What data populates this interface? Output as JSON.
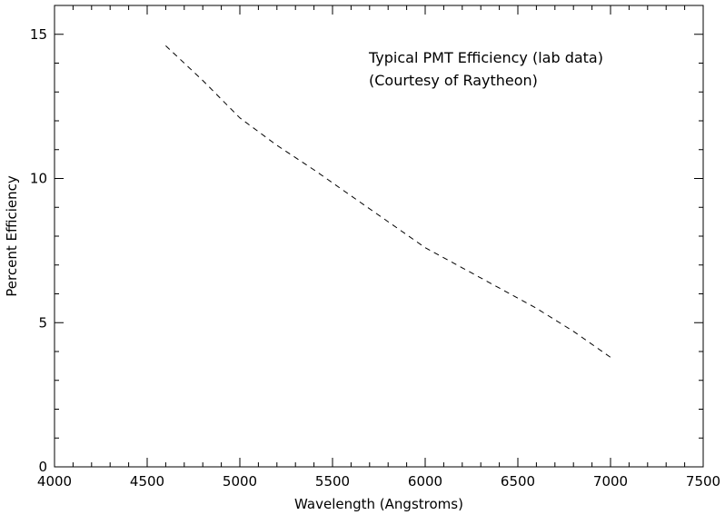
{
  "chart_data": {
    "type": "line",
    "title": "",
    "xlabel": "Wavelength (Angstroms)",
    "ylabel": "Percent Efficiency",
    "xlim": [
      4000,
      7500
    ],
    "ylim": [
      0,
      16
    ],
    "x_ticks": [
      4000,
      4500,
      5000,
      5500,
      6000,
      6500,
      7000,
      7500
    ],
    "x_tick_labels": [
      "4000",
      "4500",
      "5000",
      "5500",
      "6000",
      "6500",
      "7000",
      "7500"
    ],
    "x_minor_step": 100,
    "y_ticks": [
      0,
      5,
      10,
      15
    ],
    "y_tick_labels": [
      "0",
      "5",
      "10",
      "15"
    ],
    "y_minor_step": 1,
    "grid": false,
    "legend": "none",
    "line_style": "dashed",
    "line_color": "#000000",
    "annotations": [
      "Typical PMT Efficiency (lab data)",
      "(Courtesy of Raytheon)"
    ],
    "series": [
      {
        "x": [
          4600,
          4800,
          5000,
          5200,
          5400,
          5600,
          5800,
          6000,
          6200,
          6400,
          6600,
          6800,
          7000
        ],
        "y": [
          14.6,
          13.4,
          12.1,
          11.15,
          10.3,
          9.4,
          8.5,
          7.6,
          6.9,
          6.2,
          5.5,
          4.7,
          3.8
        ]
      }
    ]
  }
}
